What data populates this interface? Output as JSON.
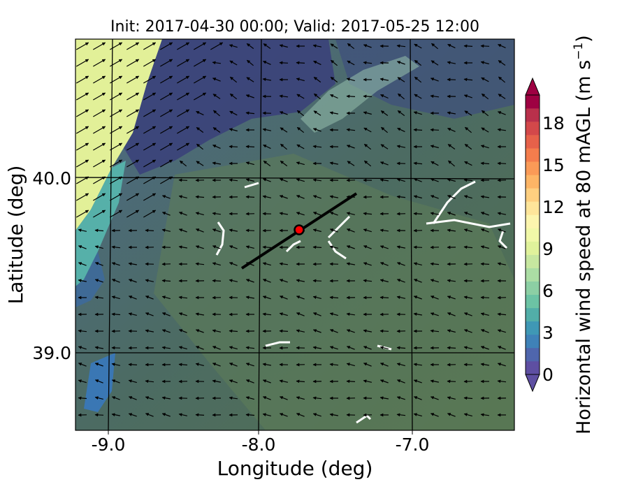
{
  "map": {
    "title": "Init: 2017-04-30 00:00; Valid: 2017-05-25 12:00",
    "xlabel": "Longitude (deg)",
    "ylabel": "Latitude (deg)",
    "x_ticks": [
      "-9.0",
      "-8.0",
      "-7.0"
    ],
    "y_ticks": [
      "40.0",
      "39.0"
    ],
    "colorbar": {
      "label": "Horizontal wind speed at 80 mAGL",
      "unit": "(m s",
      "unit_exp": "−1",
      "unit_close": ")",
      "ticks": [
        "0",
        "3",
        "6",
        "9",
        "12",
        "15",
        "18"
      ],
      "range": [
        0,
        20
      ],
      "extend": "both",
      "colors": [
        "#5e4fa2",
        "#4f66ad",
        "#3f82b8",
        "#3f98b5",
        "#52aea8",
        "#6cc3a4",
        "#8ccfa4",
        "#abdda4",
        "#c7e7a0",
        "#e0f29b",
        "#f1f8a8",
        "#fcf5ae",
        "#fee59a",
        "#fecf80",
        "#fdb566",
        "#fa9a57",
        "#f47d4d",
        "#e6614a",
        "#d3484a",
        "#b9304b",
        "#9e0142"
      ]
    },
    "marker": {
      "label": "site",
      "color": "#ff0000"
    }
  }
}
